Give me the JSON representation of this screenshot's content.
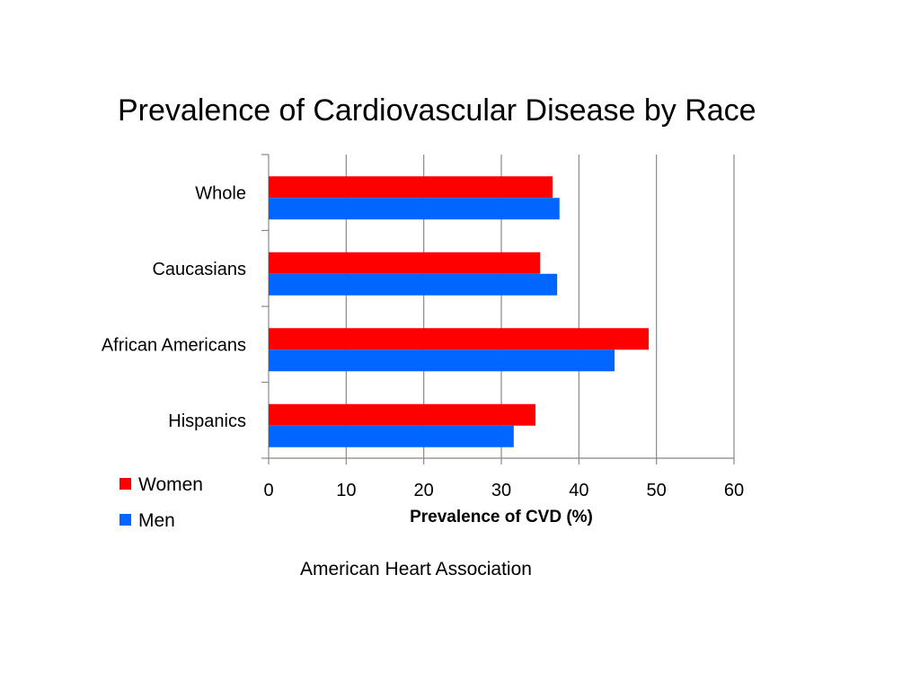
{
  "chart_data": {
    "type": "bar",
    "orientation": "horizontal",
    "title": "Prevalence of Cardiovascular Disease by Race",
    "xlabel": "Prevalence of CVD (%)",
    "ylabel": "",
    "categories": [
      "Whole",
      "Caucasians",
      "African Americans",
      "Hispanics"
    ],
    "series": [
      {
        "name": "Women",
        "color": "#ff0000",
        "values": [
          36.6,
          35.0,
          49.0,
          34.4
        ]
      },
      {
        "name": "Men",
        "color": "#0066ff",
        "values": [
          37.5,
          37.2,
          44.6,
          31.6
        ]
      }
    ],
    "xlim": [
      0,
      60
    ],
    "xticks": [
      0,
      10,
      20,
      30,
      40,
      50,
      60
    ],
    "grid": "vertical",
    "legend": "bottom-left"
  },
  "source": "American Heart Association"
}
